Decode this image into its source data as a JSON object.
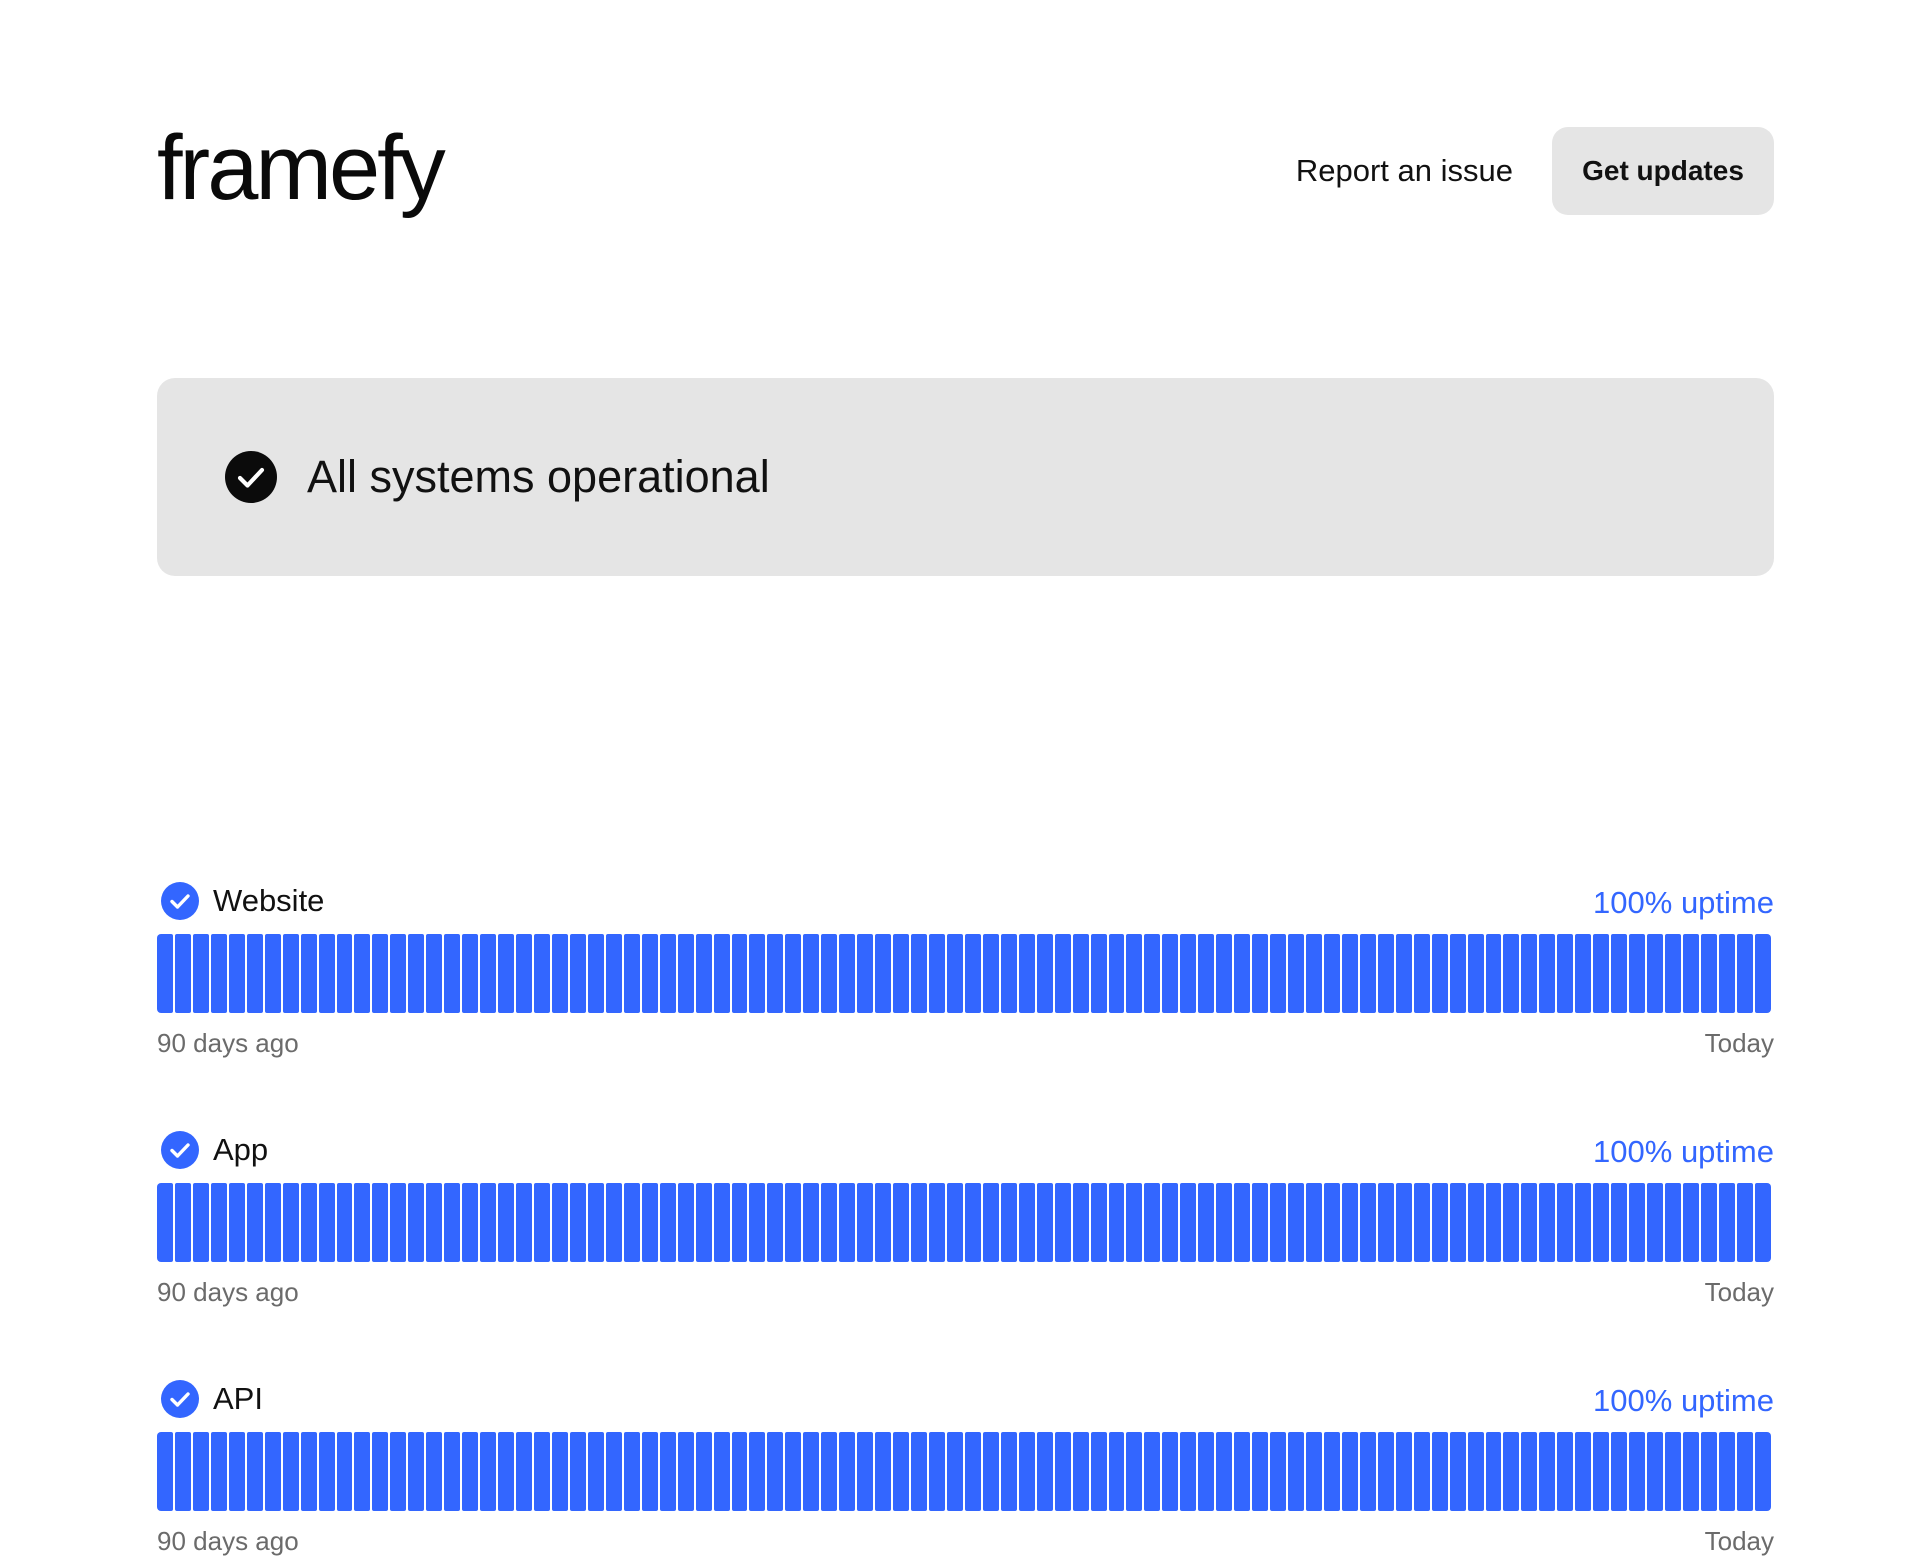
{
  "brand": {
    "logo_text": "framefy"
  },
  "nav": {
    "report_label": "Report an issue",
    "updates_label": "Get updates"
  },
  "status": {
    "text": "All systems operational",
    "icon": "check-circle-icon"
  },
  "colors": {
    "accent": "#3366ff",
    "banner_bg": "#e5e5e5",
    "muted_text": "#6b6b6b"
  },
  "services": [
    {
      "name": "Website",
      "uptime": "100% uptime",
      "range_start": "90 days ago",
      "range_end": "Today",
      "days": 90,
      "status": "operational"
    },
    {
      "name": "App",
      "uptime": "100% uptime",
      "range_start": "90 days ago",
      "range_end": "Today",
      "days": 90,
      "status": "operational"
    },
    {
      "name": "API",
      "uptime": "100% uptime",
      "range_start": "90 days ago",
      "range_end": "Today",
      "days": 90,
      "status": "operational"
    }
  ]
}
